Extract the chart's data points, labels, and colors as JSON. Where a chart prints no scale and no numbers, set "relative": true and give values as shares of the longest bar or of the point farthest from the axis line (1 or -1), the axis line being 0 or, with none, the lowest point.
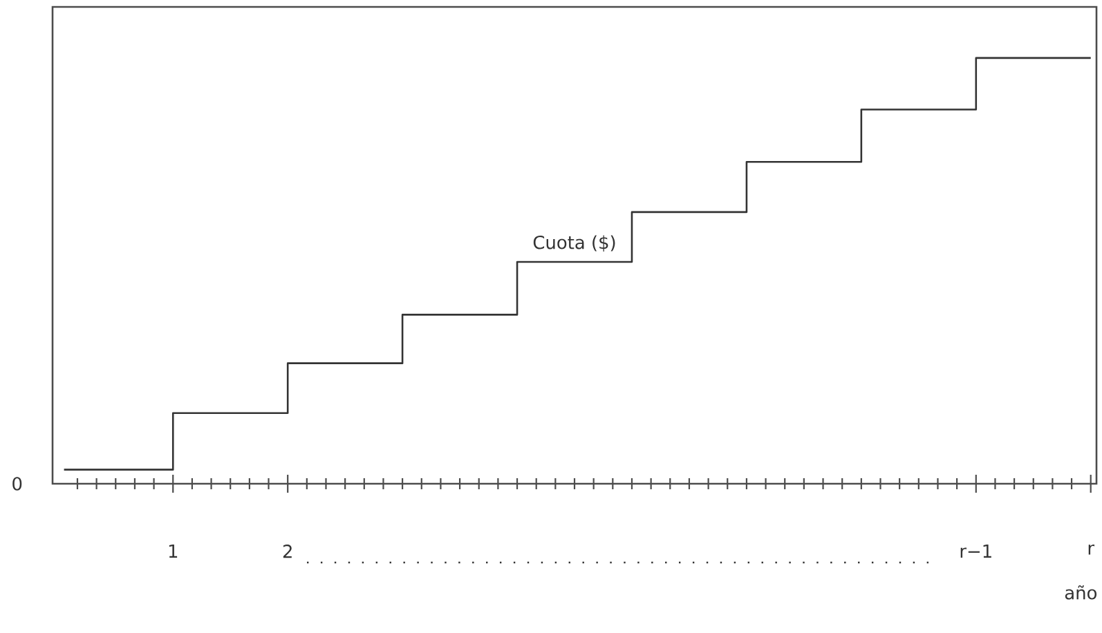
{
  "chart_data": {
    "type": "step",
    "relative": true,
    "xlabel": "año",
    "x": [
      0.05,
      1,
      2,
      3,
      4,
      5,
      6,
      7,
      8,
      9
    ],
    "series": [
      {
        "name": "Cuota ($)",
        "color": "#333333",
        "values": [
          0.033,
          0.166,
          0.283,
          0.397,
          0.521,
          0.638,
          0.756,
          0.879,
          1,
          1
        ]
      }
    ],
    "xlim": [
      -0.05,
      9.05
    ],
    "xticks": [
      {
        "value": 1,
        "label": "1"
      },
      {
        "value": 2,
        "label": "2"
      },
      {
        "value": 8,
        "label": "r−1"
      },
      {
        "value": 9,
        "label": "r"
      }
    ],
    "tick_labels": "x",
    "annotations": [
      "0"
    ]
  }
}
